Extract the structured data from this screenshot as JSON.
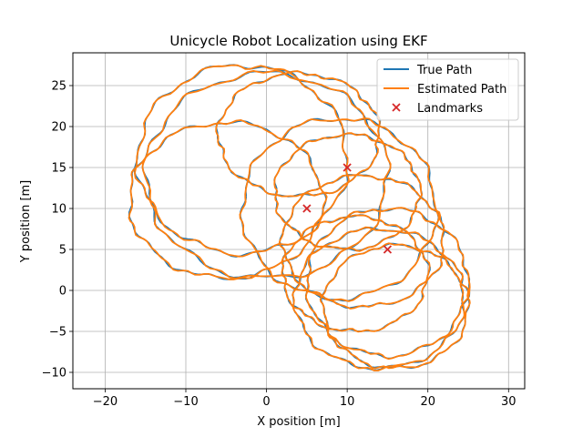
{
  "chart_data": {
    "type": "line",
    "title": "Unicycle Robot Localization using EKF",
    "xlabel": "X position [m]",
    "ylabel": "Y position [m]",
    "xlim": [
      -24,
      32
    ],
    "ylim": [
      -12,
      29
    ],
    "xticks": [
      -20,
      -10,
      0,
      10,
      20,
      30
    ],
    "yticks": [
      -10,
      -5,
      0,
      5,
      10,
      15,
      20,
      25
    ],
    "grid": true,
    "legend_position": "top-right",
    "series": [
      {
        "name": "True Path",
        "color": "#1f77b4",
        "loops": [
          {
            "cx": 0,
            "cy": 14,
            "rx": 15,
            "ry": 12.5
          },
          {
            "cx": -5,
            "cy": 11,
            "rx": 12,
            "ry": 9.5
          },
          {
            "cx": -3,
            "cy": 16,
            "rx": 13,
            "ry": 11.5
          },
          {
            "cx": 4,
            "cy": 19,
            "rx": 10,
            "ry": 7.5
          },
          {
            "cx": 10,
            "cy": 12,
            "rx": 9,
            "ry": 7
          },
          {
            "cx": 9,
            "cy": 10,
            "rx": 12,
            "ry": 11
          },
          {
            "cx": 12,
            "cy": 6,
            "rx": 10,
            "ry": 8
          },
          {
            "cx": 11,
            "cy": 2,
            "rx": 9,
            "ry": 7
          },
          {
            "cx": 15,
            "cy": 1,
            "rx": 10,
            "ry": 9
          },
          {
            "cx": 14,
            "cy": -1,
            "rx": 10.5,
            "ry": 8.5
          },
          {
            "cx": 16,
            "cy": -2,
            "rx": 9,
            "ry": 7.5
          }
        ]
      },
      {
        "name": "Estimated Path",
        "color": "#ff7f0e",
        "loops": [
          {
            "cx": 0,
            "cy": 14,
            "rx": 15,
            "ry": 12.5
          },
          {
            "cx": -5,
            "cy": 11,
            "rx": 12,
            "ry": 9.5
          },
          {
            "cx": -3,
            "cy": 16,
            "rx": 13,
            "ry": 11.5
          },
          {
            "cx": 4,
            "cy": 19,
            "rx": 10,
            "ry": 7.5
          },
          {
            "cx": 10,
            "cy": 12,
            "rx": 9,
            "ry": 7
          },
          {
            "cx": 9,
            "cy": 10,
            "rx": 12,
            "ry": 11
          },
          {
            "cx": 12,
            "cy": 6,
            "rx": 10,
            "ry": 8
          },
          {
            "cx": 11,
            "cy": 2,
            "rx": 9,
            "ry": 7
          },
          {
            "cx": 15,
            "cy": 1,
            "rx": 10,
            "ry": 9
          },
          {
            "cx": 14,
            "cy": -1,
            "rx": 10.5,
            "ry": 8.5
          },
          {
            "cx": 16,
            "cy": -2,
            "rx": 9,
            "ry": 7.5
          }
        ]
      }
    ],
    "landmarks": {
      "name": "Landmarks",
      "color": "#d62728",
      "marker": "x",
      "points": [
        {
          "x": 5,
          "y": 10
        },
        {
          "x": 10,
          "y": 15
        },
        {
          "x": 15,
          "y": 5
        }
      ]
    },
    "legend": [
      "True Path",
      "Estimated Path",
      "Landmarks"
    ]
  }
}
